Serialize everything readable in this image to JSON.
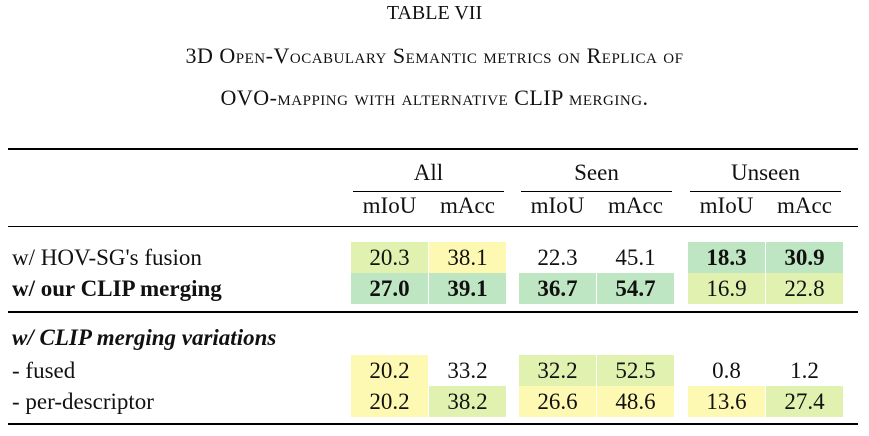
{
  "caption": {
    "label": "TABLE VII",
    "line1": "3D Open-Vocabulary Semantic metrics on Replica of",
    "line2": "OVO-mapping with alternative CLIP merging."
  },
  "colors": {
    "green": "#bfe6c2",
    "lightgreen": "#e1f1b0",
    "yellow": "#fef9b2"
  },
  "header": {
    "groups": [
      "All",
      "Seen",
      "Unseen"
    ],
    "metrics": [
      "mIoU",
      "mAcc",
      "mIoU",
      "mAcc",
      "mIoU",
      "mAcc"
    ]
  },
  "rows": [
    {
      "label": "w/ HOV-SG's fusion",
      "bold": false,
      "values": [
        "20.3",
        "38.1",
        "22.3",
        "45.1",
        "18.3",
        "30.9"
      ],
      "bold_cells": [
        false,
        false,
        false,
        false,
        true,
        true
      ],
      "shade": [
        "lightgreen",
        "yellow",
        "",
        "",
        "green",
        "green"
      ]
    },
    {
      "label": "w/ our CLIP merging",
      "bold": true,
      "values": [
        "27.0",
        "39.1",
        "36.7",
        "54.7",
        "16.9",
        "22.8"
      ],
      "bold_cells": [
        true,
        true,
        true,
        true,
        false,
        false
      ],
      "shade": [
        "green",
        "green",
        "green",
        "green",
        "lightgreen",
        "lightgreen"
      ]
    }
  ],
  "section_title": "w/ CLIP merging variations",
  "variations": [
    {
      "label": "- fused",
      "values": [
        "20.2",
        "33.2",
        "32.2",
        "52.5",
        "0.8",
        "1.2"
      ],
      "shade": [
        "yellow",
        "",
        "lightgreen",
        "lightgreen",
        "",
        ""
      ]
    },
    {
      "label": "- per-descriptor",
      "values": [
        "20.2",
        "38.2",
        "26.6",
        "48.6",
        "13.6",
        "27.4"
      ],
      "shade": [
        "yellow",
        "lightgreen",
        "yellow",
        "yellow",
        "yellow",
        "lightgreen"
      ]
    }
  ]
}
